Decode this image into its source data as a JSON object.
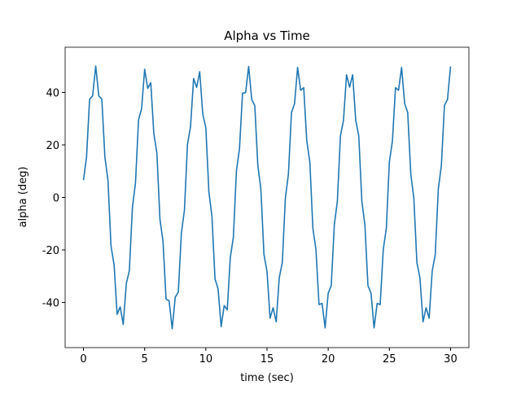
{
  "chart_data": {
    "type": "line",
    "title": "Alpha vs Time",
    "xlabel": "time (sec)",
    "ylabel": "alpha (deg)",
    "x": [
      0,
      0.25,
      0.5,
      0.75,
      1,
      1.25,
      1.5,
      1.75,
      2,
      2.25,
      2.5,
      2.75,
      3,
      3.25,
      3.5,
      3.75,
      4,
      4.25,
      4.5,
      4.75,
      5,
      5.25,
      5.5,
      5.75,
      6,
      6.25,
      6.5,
      6.75,
      7,
      7.25,
      7.5,
      7.75,
      8,
      8.25,
      8.5,
      8.75,
      9,
      9.25,
      9.5,
      9.75,
      10,
      10.25,
      10.5,
      10.75,
      11,
      11.25,
      11.5,
      11.75,
      12,
      12.25,
      12.5,
      12.75,
      13,
      13.25,
      13.5,
      13.75,
      14,
      14.25,
      14.5,
      14.75,
      15,
      15.25,
      15.5,
      15.75,
      16,
      16.25,
      16.5,
      16.75,
      17,
      17.25,
      17.5,
      17.75,
      18,
      18.25,
      18.5,
      18.75,
      19,
      19.25,
      19.5,
      19.75,
      20,
      20.25,
      20.5,
      20.75,
      21,
      21.25,
      21.5,
      21.75,
      22,
      22.25,
      22.5,
      22.75,
      23,
      23.25,
      23.5,
      23.75,
      24,
      24.25,
      24.5,
      24.75,
      25,
      25.25,
      25.5,
      25.75,
      26,
      26.25,
      26.5,
      26.75,
      27,
      27.25,
      27.5,
      27.75,
      28,
      28.25,
      28.5,
      28.75,
      29,
      29.25,
      29.5,
      29.75,
      30
    ],
    "series": [
      {
        "color": "#1f77b4",
        "values": [
          6.6,
          15.4,
          37.4,
          38.7,
          50.0,
          38.7,
          37.4,
          15.4,
          6.6,
          -18.5,
          -25.6,
          -44.5,
          -41.7,
          -48.4,
          -32.8,
          -27.9,
          -3.8,
          5.5,
          29.5,
          33.8,
          48.8,
          41.5,
          43.7,
          24.3,
          16.9,
          -8.3,
          -16.8,
          -38.7,
          -39.4,
          -50.0,
          -38.0,
          -36.1,
          -13.7,
          -4.9,
          20.2,
          27.0,
          45.3,
          41.9,
          47.9,
          31.7,
          26.5,
          2.1,
          -7.2,
          -31.0,
          -34.8,
          -49.2,
          -41.2,
          -42.8,
          -22.9,
          -15.2,
          10.1,
          18.5,
          39.7,
          39.9,
          49.9,
          37.3,
          35.0,
          12.2,
          3.1,
          -21.7,
          -28.2,
          -46.0,
          -42.0,
          -47.4,
          -30.6,
          -24.8,
          -0.3,
          8.9,
          32.3,
          35.7,
          49.5,
          40.8,
          41.8,
          21.5,
          13.5,
          -11.8,
          -19.9,
          -40.8,
          -40.4,
          -49.7,
          -36.5,
          -33.6,
          -10.5,
          -1.4,
          23.4,
          29.4,
          46.7,
          42.0,
          46.7,
          29.4,
          23.4,
          -1.4,
          -10.5,
          -33.6,
          -36.5,
          -49.7,
          -40.4,
          -40.8,
          -19.9,
          -11.8,
          13.5,
          21.5,
          41.8,
          40.8,
          49.5,
          35.7,
          32.3,
          8.9,
          -0.3,
          -24.8,
          -30.7,
          -47.4,
          -42.0,
          -46.0,
          -28.1,
          -21.7,
          3.1,
          12.2,
          35.0,
          37.3,
          49.9
        ]
      }
    ],
    "xlim": [
      -1.5,
      31.5
    ],
    "ylim": [
      -57.2,
      57.2
    ],
    "xticks": [
      0,
      5,
      10,
      15,
      20,
      25,
      30
    ],
    "yticks": [
      -40,
      -20,
      0,
      20,
      40
    ]
  }
}
